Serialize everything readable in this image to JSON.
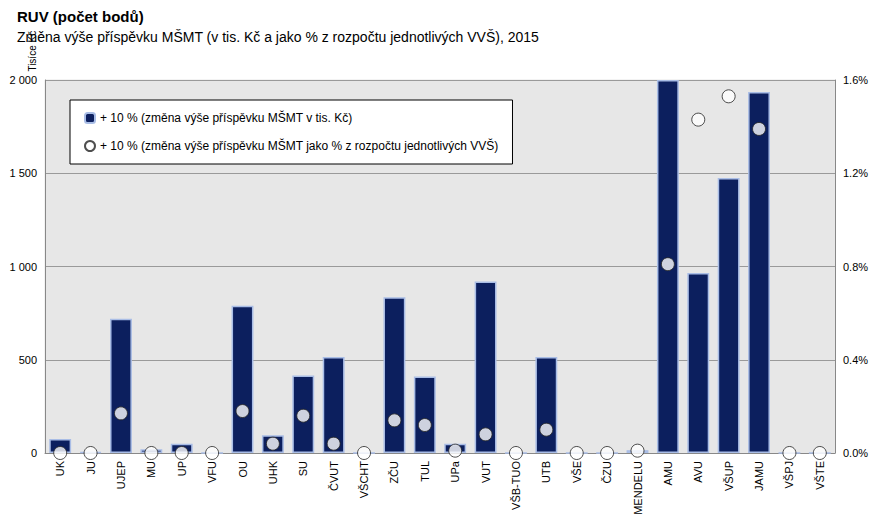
{
  "chart_data": {
    "type": "bar",
    "title": "RUV (počet bodů)",
    "subtitle": "Změna výše příspěvku MŠMT (v tis. Kč a jako % z rozpočtu jednotlivých VVŠ), 2015",
    "ylabel": "Tisíce Kč",
    "categories": [
      "UK",
      "JU",
      "UJEP",
      "MU",
      "UP",
      "VFU",
      "OU",
      "UHK",
      "SU",
      "ČVUT",
      "VŠCHT",
      "ZČU",
      "TUL",
      "UPa",
      "VUT",
      "VŠB-TUO",
      "UTB",
      "VŠE",
      "ČZU",
      "MENDELU",
      "AMU",
      "AVU",
      "VŠUP",
      "JAMU",
      "VŠPJ",
      "VŠTE"
    ],
    "series": [
      {
        "name": "+ 10 % (změna výše příspěvku MŠMT v tis. Kč)",
        "type": "bar",
        "color": "#0c1f5e",
        "values": [
          75,
          5,
          720,
          20,
          50,
          0,
          790,
          95,
          415,
          515,
          0,
          835,
          410,
          50,
          920,
          0,
          515,
          0,
          0,
          15,
          2000,
          965,
          1475,
          1935,
          0,
          0
        ]
      },
      {
        "name": "+ 10 % (změna výše příspěvku MŠMT jako % z rozpočtu jednotlivých VVŠ)",
        "type": "scatter",
        "color": "#ffffff",
        "marker": "circle",
        "axis": "y2",
        "values": [
          0,
          0,
          0.17,
          0,
          0,
          0,
          0.18,
          0.04,
          0.16,
          0.04,
          0,
          0.14,
          0.12,
          0.01,
          0.08,
          0,
          0.1,
          0,
          0,
          0.01,
          0.81,
          1.43,
          1.53,
          1.39,
          0,
          0
        ]
      }
    ],
    "ylim": [
      0,
      2000
    ],
    "yticks": [
      0,
      500,
      {
        "value": 1000,
        "label": "1 000"
      },
      {
        "value": 1500,
        "label": "1 500"
      },
      {
        "value": 2000,
        "label": "2 000"
      }
    ],
    "y2lim": [
      0,
      1.6
    ],
    "y2ticks": [
      {
        "value": 0,
        "label": "0.0%"
      },
      {
        "value": 0.4,
        "label": "0.4%"
      },
      {
        "value": 0.8,
        "label": "0.8%"
      },
      {
        "value": 1.2,
        "label": "1.2%"
      },
      {
        "value": 1.6,
        "label": "1.6%"
      }
    ],
    "grid": true,
    "legend": "upper left"
  }
}
